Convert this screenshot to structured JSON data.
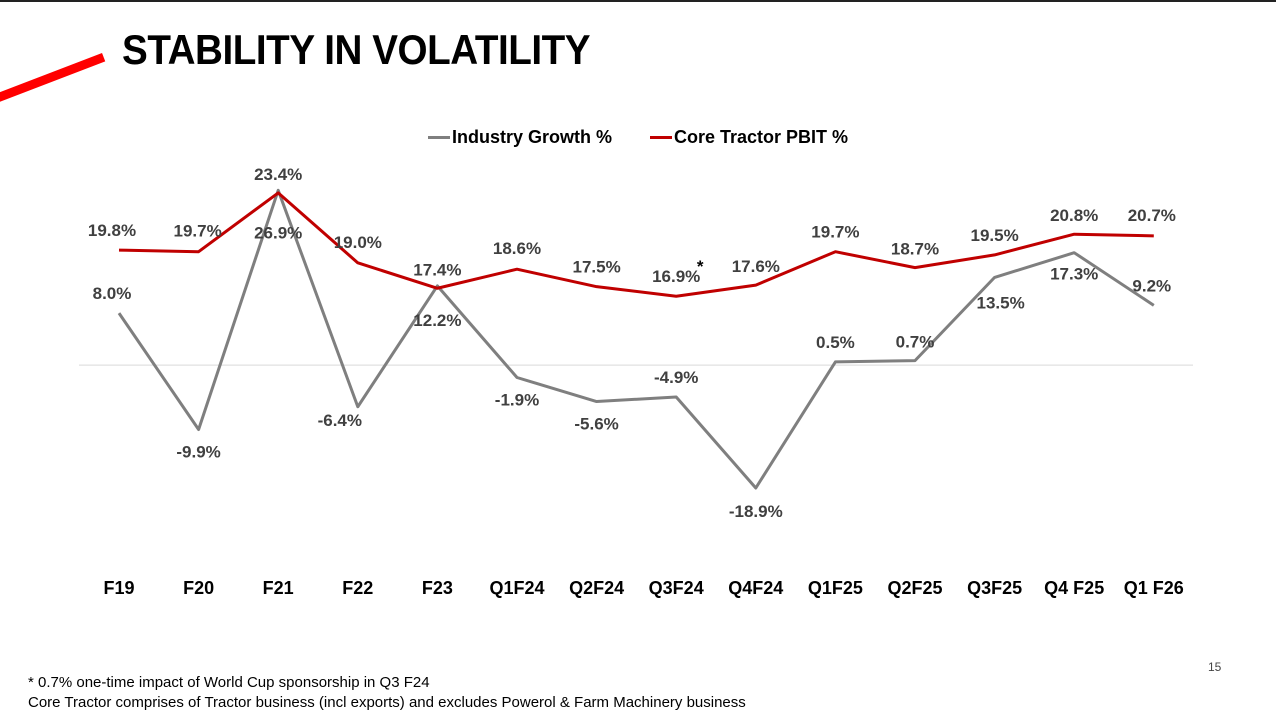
{
  "slide": {
    "title": "STABILITY IN VOLATILITY",
    "page_number": "15",
    "footnotes": [
      "* 0.7% one-time impact of World Cup sponsorship in Q3 F24",
      "Core Tractor comprises of Tractor business (incl exports) and excludes Powerol & Farm Machinery business"
    ],
    "accent_color": "#ff0000"
  },
  "chart_data": {
    "type": "line",
    "title": "",
    "xlabel": "",
    "ylabel": "",
    "grid": false,
    "legend_position": "top-center",
    "categories": [
      "F19",
      "F20",
      "F21",
      "F22",
      "F23",
      "Q1F24",
      "Q2F24",
      "Q3F24",
      "Q4F24",
      "Q1F25",
      "Q2F25",
      "Q3F25",
      "Q4 F25",
      "Q1 F26"
    ],
    "series": [
      {
        "name": "Industry Growth %",
        "color": "#7f7f7f",
        "axis": "primary",
        "values": [
          8.0,
          -9.9,
          26.9,
          -6.4,
          12.2,
          -1.9,
          -5.6,
          -4.9,
          -18.9,
          0.5,
          0.7,
          13.5,
          17.3,
          9.2
        ],
        "labels": [
          "8.0%",
          "-9.9%",
          "26.9%",
          "-6.4%",
          "12.2%",
          "-1.9%",
          "-5.6%",
          "-4.9%",
          "-18.9%",
          "0.5%",
          "0.7%",
          "13.5%",
          "17.3%",
          "9.2%"
        ]
      },
      {
        "name": "Core Tractor PBIT %",
        "color": "#c00000",
        "axis": "secondary",
        "values": [
          19.8,
          19.7,
          23.4,
          19.0,
          17.4,
          18.6,
          17.5,
          16.9,
          17.6,
          19.7,
          18.7,
          19.5,
          20.8,
          20.7
        ],
        "labels": [
          "19.8%",
          "19.7%",
          "23.4%",
          "19.0%",
          "17.4%",
          "18.6%",
          "17.5%",
          "16.9%",
          "17.6%",
          "19.7%",
          "18.7%",
          "19.5%",
          "20.8%",
          "20.7%"
        ]
      }
    ],
    "annotations": [
      {
        "category": "Q3F24",
        "series": "Core Tractor PBIT %",
        "text": "*"
      }
    ]
  }
}
